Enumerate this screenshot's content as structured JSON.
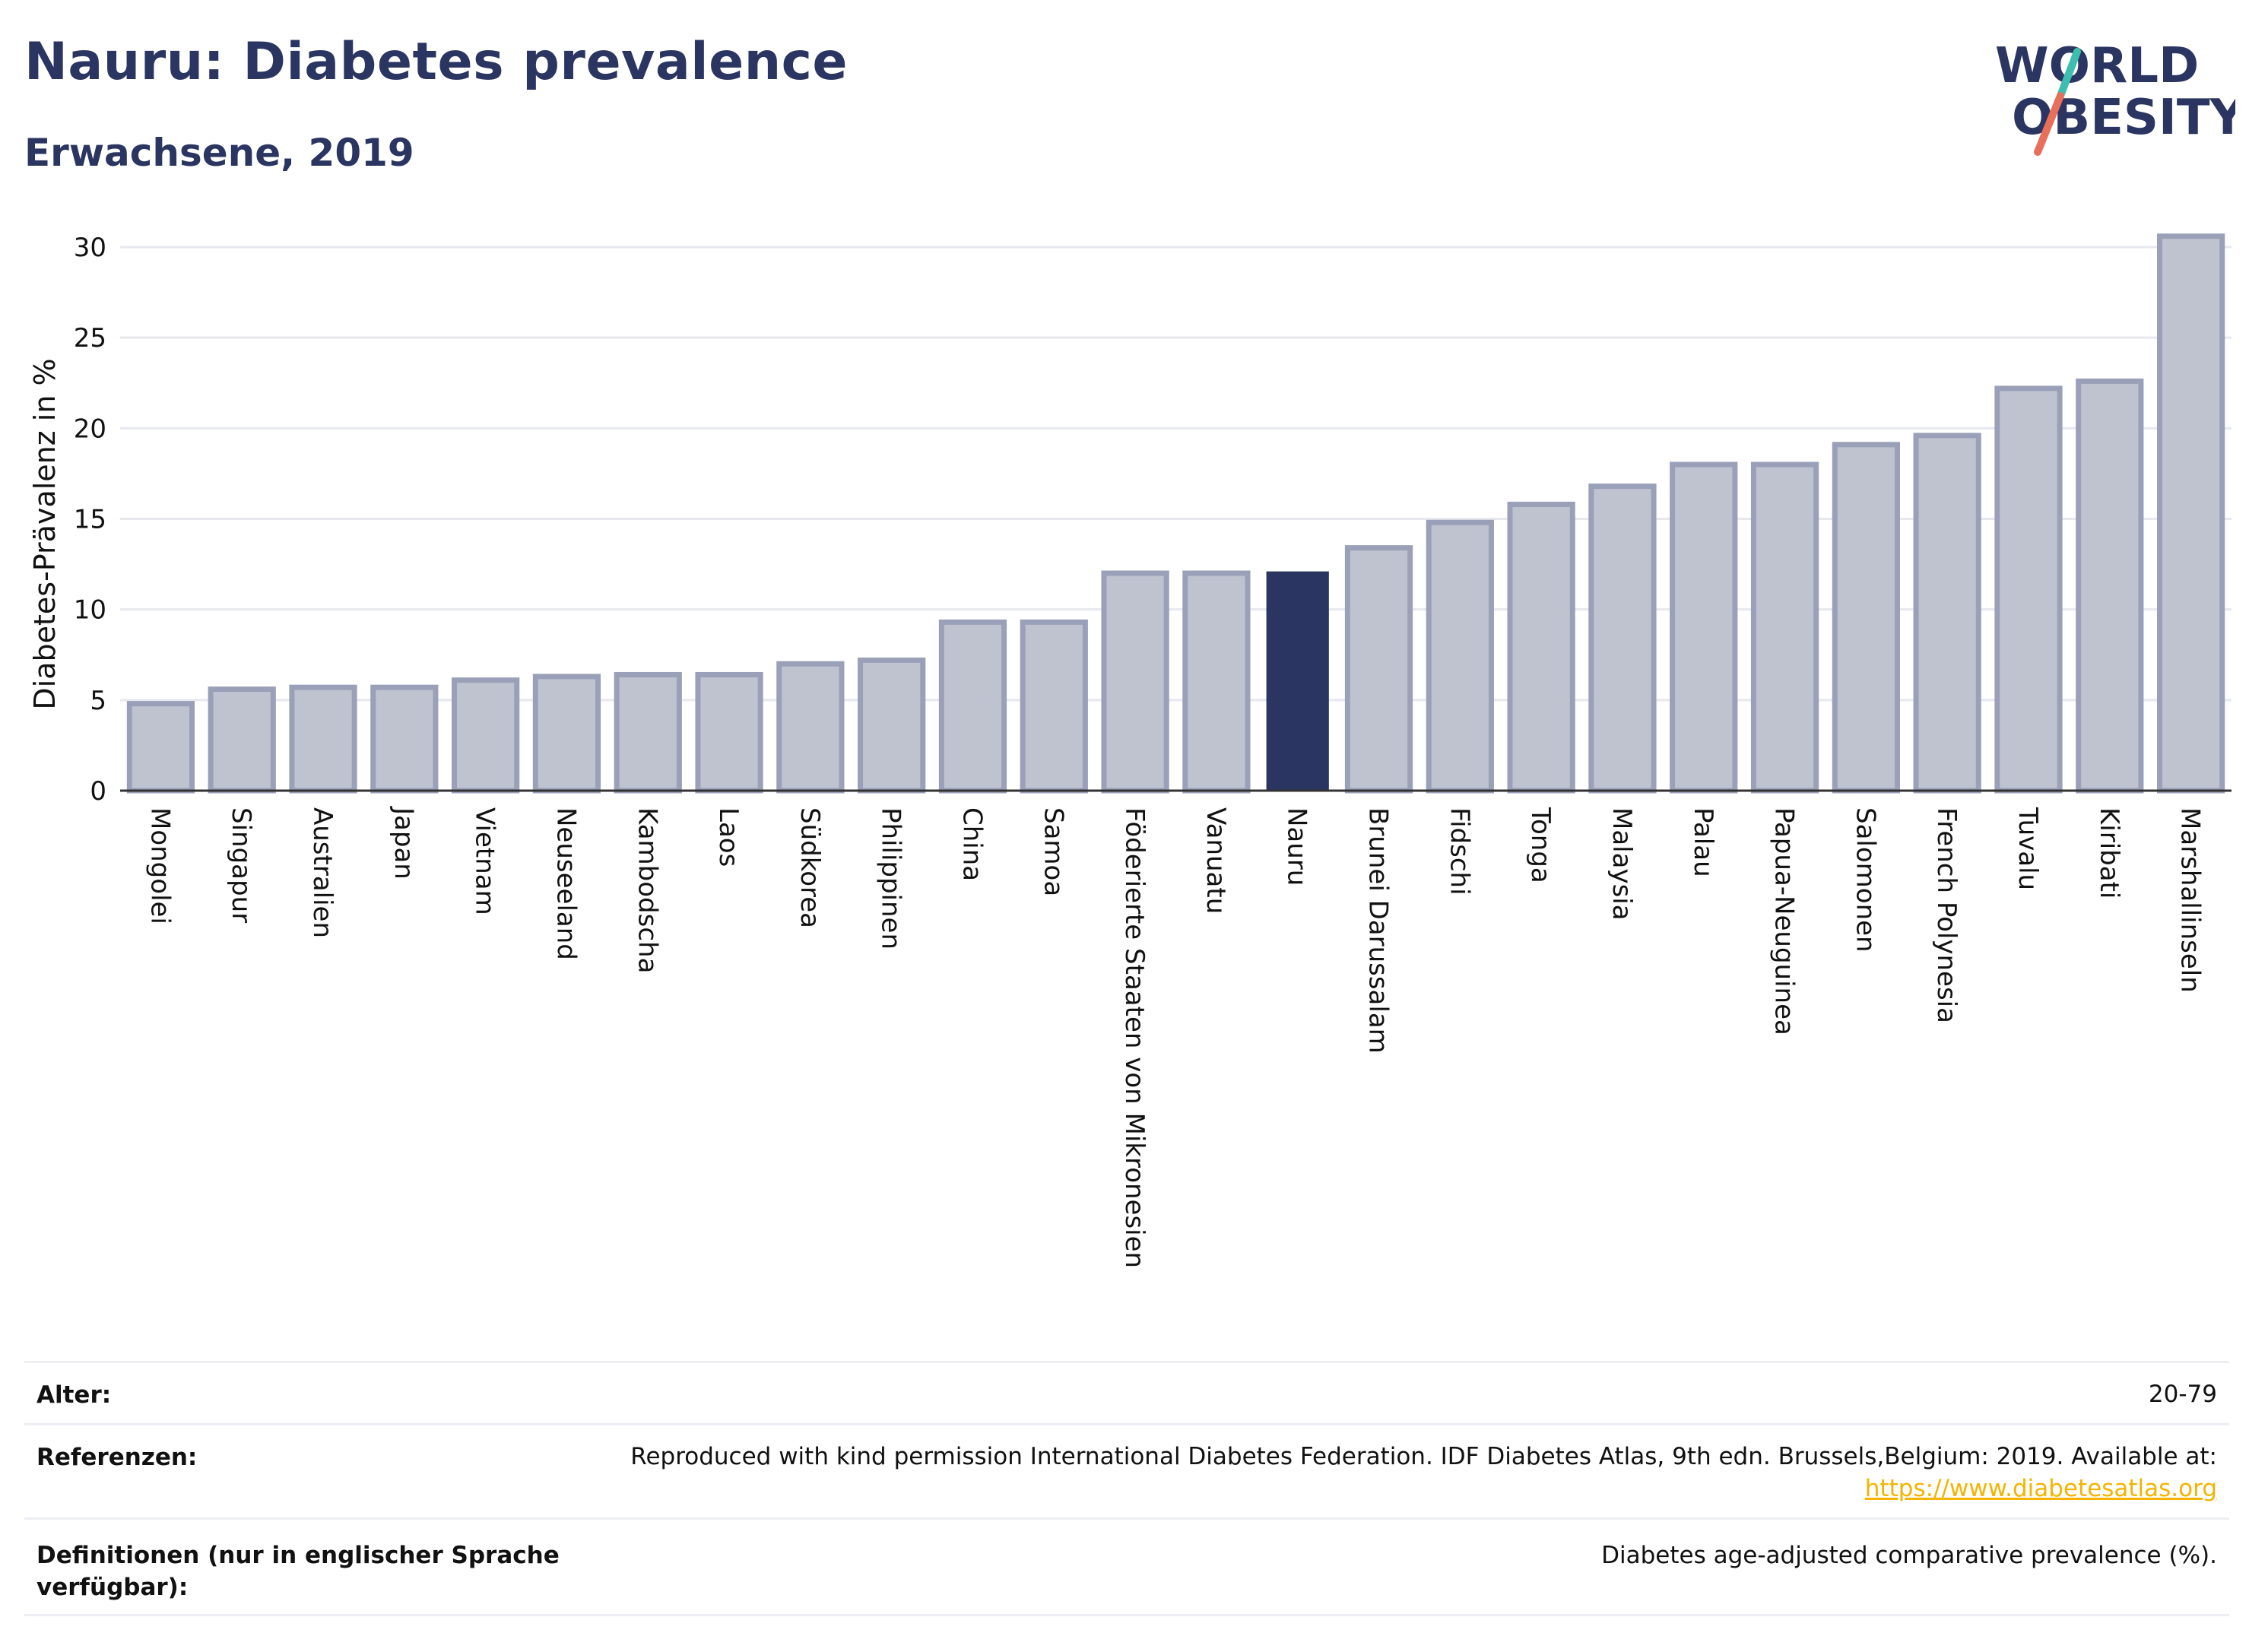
{
  "header": {
    "title": "Nauru: Diabetes prevalence",
    "subtitle": "Erwachsene, 2019"
  },
  "logo": {
    "line1": "WORLD",
    "line2": "OBESITY"
  },
  "colors": {
    "title": "#2b3561",
    "bar_default": "#bfc3d0",
    "bar_border": "#9aa0b8",
    "bar_highlight": "#2b3561",
    "grid": "#e6e8ee",
    "logo_teal": "#3cbfae",
    "logo_coral": "#e8705a"
  },
  "chart_data": {
    "type": "bar",
    "ylabel": "Diabetes-Prävalenz in %",
    "ylim": [
      0,
      31
    ],
    "yticks": [
      0,
      5,
      10,
      15,
      20,
      25,
      30
    ],
    "grid": true,
    "highlight": "Nauru",
    "categories": [
      "Mongolei",
      "Singapur",
      "Australien",
      "Japan",
      "Vietnam",
      "Neuseeland",
      "Kambodscha",
      "Laos",
      "Südkorea",
      "Philippinen",
      "China",
      "Samoa",
      "Föderierte Staaten von Mikronesien",
      "Vanuatu",
      "Nauru",
      "Brunei Darussalam",
      "Fidschi",
      "Tonga",
      "Malaysia",
      "Palau",
      "Papua-Neuguinea",
      "Salomonen",
      "French Polynesia",
      "Tuvalu",
      "Kiribati",
      "Marshallinseln"
    ],
    "values": [
      4.8,
      5.6,
      5.7,
      5.7,
      6.1,
      6.3,
      6.4,
      6.4,
      7.0,
      7.2,
      9.3,
      9.3,
      12.0,
      12.0,
      12.1,
      13.4,
      14.8,
      15.8,
      16.8,
      18.0,
      18.0,
      19.1,
      19.6,
      22.2,
      22.6,
      30.6
    ]
  },
  "info": {
    "age_label": "Alter:",
    "age_value": "20-79",
    "references_label": "Referenzen:",
    "references_text": "Reproduced with kind permission International Diabetes Federation. IDF Diabetes Atlas, 9th edn. Brussels,Belgium: 2019. Available at:",
    "references_link": "https://www.diabetesatlas.org",
    "definitions_label_1": "Definitionen (nur in englischer Sprache",
    "definitions_label_2": "verfügbar):",
    "definitions_text": "Diabetes age-adjusted comparative prevalence (%)."
  }
}
